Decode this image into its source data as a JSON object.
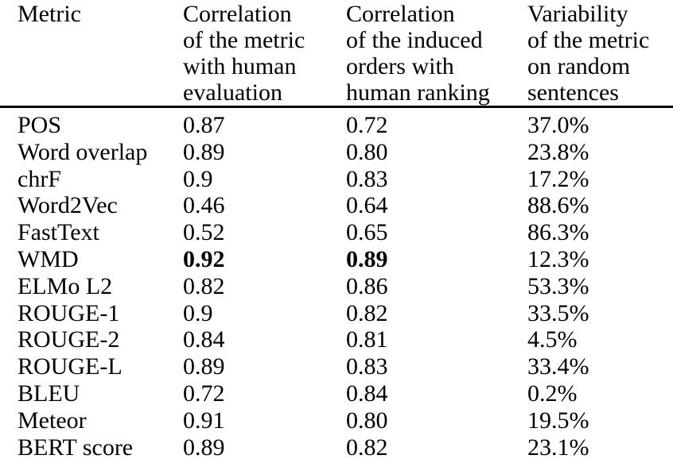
{
  "colors": {
    "text": "#000000",
    "background": "#ffffff",
    "rule": "#000000"
  },
  "table": {
    "columns": [
      {
        "id": "metric",
        "label": "Metric"
      },
      {
        "id": "corr_human",
        "label": "Correlation\nof the metric\nwith human\nevaluation"
      },
      {
        "id": "corr_orders",
        "label": "Correlation\nof the induced\norders with\nhuman ranking"
      },
      {
        "id": "variability",
        "label": "Variability\nof the metric\non random\nsentences"
      }
    ],
    "rows": [
      {
        "metric": "POS",
        "corr_human": "0.87",
        "corr_orders": "0.72",
        "variability": "37.0%"
      },
      {
        "metric": "Word overlap",
        "corr_human": "0.89",
        "corr_orders": "0.80",
        "variability": "23.8%"
      },
      {
        "metric": "chrF",
        "corr_human": "0.9",
        "corr_orders": "0.83",
        "variability": "17.2%"
      },
      {
        "metric": "Word2Vec",
        "corr_human": "0.46",
        "corr_orders": "0.64",
        "variability": "88.6%"
      },
      {
        "metric": "FastText",
        "corr_human": "0.52",
        "corr_orders": "0.65",
        "variability": "86.3%"
      },
      {
        "metric": "WMD",
        "corr_human": "0.92",
        "corr_orders": "0.89",
        "variability": "12.3%"
      },
      {
        "metric": "ELMo L2",
        "corr_human": "0.82",
        "corr_orders": "0.86",
        "variability": "53.3%"
      },
      {
        "metric": "ROUGE-1",
        "corr_human": "0.9",
        "corr_orders": "0.82",
        "variability": "33.5%"
      },
      {
        "metric": "ROUGE-2",
        "corr_human": "0.84",
        "corr_orders": "0.81",
        "variability": "4.5%"
      },
      {
        "metric": "ROUGE-L",
        "corr_human": "0.89",
        "corr_orders": "0.83",
        "variability": "33.4%"
      },
      {
        "metric": "BLEU",
        "corr_human": "0.72",
        "corr_orders": "0.84",
        "variability": "0.2%"
      },
      {
        "metric": "Meteor",
        "corr_human": "0.91",
        "corr_orders": "0.80",
        "variability": "19.5%"
      },
      {
        "metric": "BERT score",
        "corr_human": "0.89",
        "corr_orders": "0.82",
        "variability": "23.1%"
      }
    ]
  }
}
